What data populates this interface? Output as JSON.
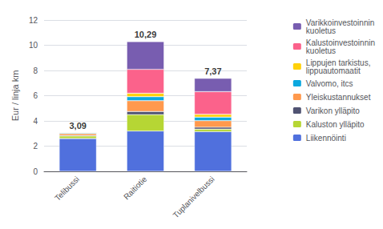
{
  "chart_data": {
    "type": "bar",
    "stacked": true,
    "categories": [
      "Telibussi",
      "Raitiotie",
      "Tuplanivelbussi"
    ],
    "series": [
      {
        "name": "Liikennöinti",
        "values": [
          2.6,
          3.2,
          3.15
        ]
      },
      {
        "name": "Kaluston ylläpito",
        "values": [
          0.2,
          1.3,
          0.2
        ]
      },
      {
        "name": "Varikon ylläpito",
        "values": [
          0.05,
          0.25,
          0.15
        ]
      },
      {
        "name": "Yleiskustannukset",
        "values": [
          0.14,
          0.85,
          0.52
        ]
      },
      {
        "name": "Valvomo, itcs",
        "values": [
          0.05,
          0.32,
          0.28
        ]
      },
      {
        "name": "Lippujen tarkistus,\nlippuautomaatit",
        "values": [
          0.05,
          0.27,
          0.22
        ]
      },
      {
        "name": "Kalustoinvestoinnin\nkuoletus",
        "values": [
          0.0,
          1.9,
          1.8
        ]
      },
      {
        "name": "Varikkoinvestoinnin\nkuoletus",
        "values": [
          0.0,
          2.2,
          1.05
        ]
      }
    ],
    "annotations": [
      {
        "category": "Telibussi",
        "value": 3.09,
        "label": "3,09"
      },
      {
        "category": "Raitiotie",
        "value": 10.29,
        "label": "10,29"
      },
      {
        "category": "Tuplanivelbussi",
        "value": 7.37,
        "label": "7,37"
      }
    ],
    "ylabel": "Eur / linja km",
    "ylim": [
      0,
      12
    ],
    "yticks": [
      0,
      2,
      4,
      6,
      8,
      10,
      12
    ],
    "grid": true,
    "legend": "right"
  }
}
